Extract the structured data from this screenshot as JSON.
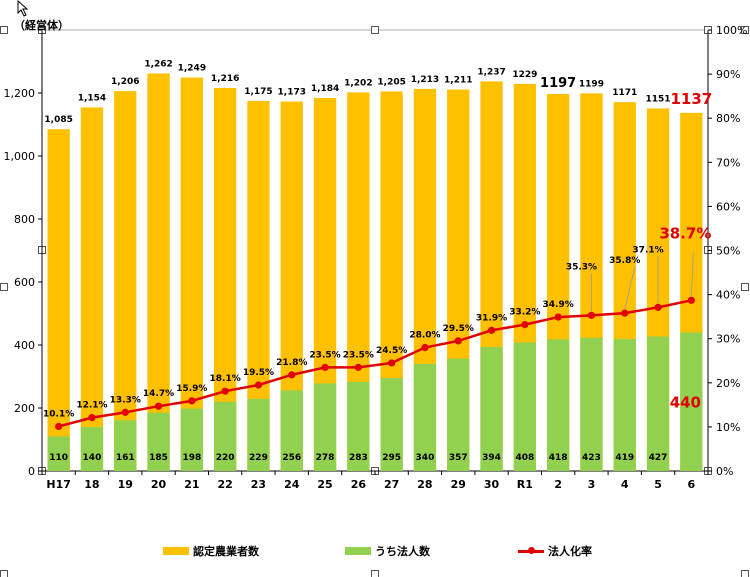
{
  "chart_data": {
    "type": "bar+line",
    "unit_label": "（経営体）",
    "categories": [
      "H17",
      "18",
      "19",
      "20",
      "21",
      "22",
      "23",
      "24",
      "25",
      "26",
      "27",
      "28",
      "29",
      "30",
      "R1",
      "2",
      "3",
      "4",
      "5",
      "6"
    ],
    "series": [
      {
        "name": "認定農業者数",
        "type": "bar",
        "color": "#ffc000",
        "values": [
          1085,
          1154,
          1206,
          1262,
          1249,
          1216,
          1175,
          1173,
          1184,
          1202,
          1205,
          1213,
          1211,
          1237,
          1229,
          1197,
          1199,
          1171,
          1151,
          1137
        ],
        "labels": [
          "1,085",
          "1,154",
          "1,206",
          "1,262",
          "1,249",
          "1,216",
          "1,175",
          "1,173",
          "1,184",
          "1,202",
          "1,205",
          "1,213",
          "1,211",
          "1,237",
          "1229",
          "1197",
          "1199",
          "1171",
          "1151",
          "1137"
        ]
      },
      {
        "name": "うち法人数",
        "type": "bar",
        "color": "#92d050",
        "values": [
          110,
          140,
          161,
          185,
          198,
          220,
          229,
          256,
          278,
          283,
          295,
          340,
          357,
          394,
          408,
          418,
          423,
          419,
          427,
          440
        ],
        "labels": [
          "110",
          "140",
          "161",
          "185",
          "198",
          "220",
          "229",
          "256",
          "278",
          "283",
          "295",
          "340",
          "357",
          "394",
          "408",
          "418",
          "423",
          "419",
          "427",
          "440"
        ]
      },
      {
        "name": "法人化率",
        "type": "line",
        "color": "#e00000",
        "axis": "right",
        "values": [
          10.1,
          12.1,
          13.3,
          14.7,
          15.9,
          18.1,
          19.5,
          21.8,
          23.5,
          23.5,
          24.5,
          28.0,
          29.5,
          31.9,
          33.2,
          34.9,
          35.3,
          35.8,
          37.1,
          38.7
        ],
        "labels": [
          "10.1%",
          "12.1%",
          "13.3%",
          "14.7%",
          "15.9%",
          "18.1%",
          "19.5%",
          "21.8%",
          "23.5%",
          "23.5%",
          "24.5%",
          "28.0%",
          "29.5%",
          "31.9%",
          "33.2%",
          "34.9%",
          "35.3%",
          "35.8%",
          "37.1%",
          "38.7%"
        ]
      }
    ],
    "y_left": {
      "min": 0,
      "max": 1400,
      "step": 200,
      "ticks": [
        "0",
        "200",
        "400",
        "600",
        "800",
        "1,000",
        "1,200",
        ""
      ]
    },
    "y_right": {
      "min": 0,
      "max": 100,
      "step": 10,
      "ticks": [
        "0%",
        "10%",
        "20%",
        "30%",
        "40%",
        "50%",
        "60%",
        "70%",
        "80%",
        "90%",
        "100%"
      ]
    },
    "legend_position": "bottom",
    "grid": false
  },
  "legend": {
    "items": [
      {
        "label": "認定農業者数",
        "color": "#ffc000",
        "kind": "box"
      },
      {
        "label": "うち法人数",
        "color": "#92d050",
        "kind": "box"
      },
      {
        "label": "法人化率",
        "color": "#e00000",
        "kind": "line"
      }
    ]
  }
}
